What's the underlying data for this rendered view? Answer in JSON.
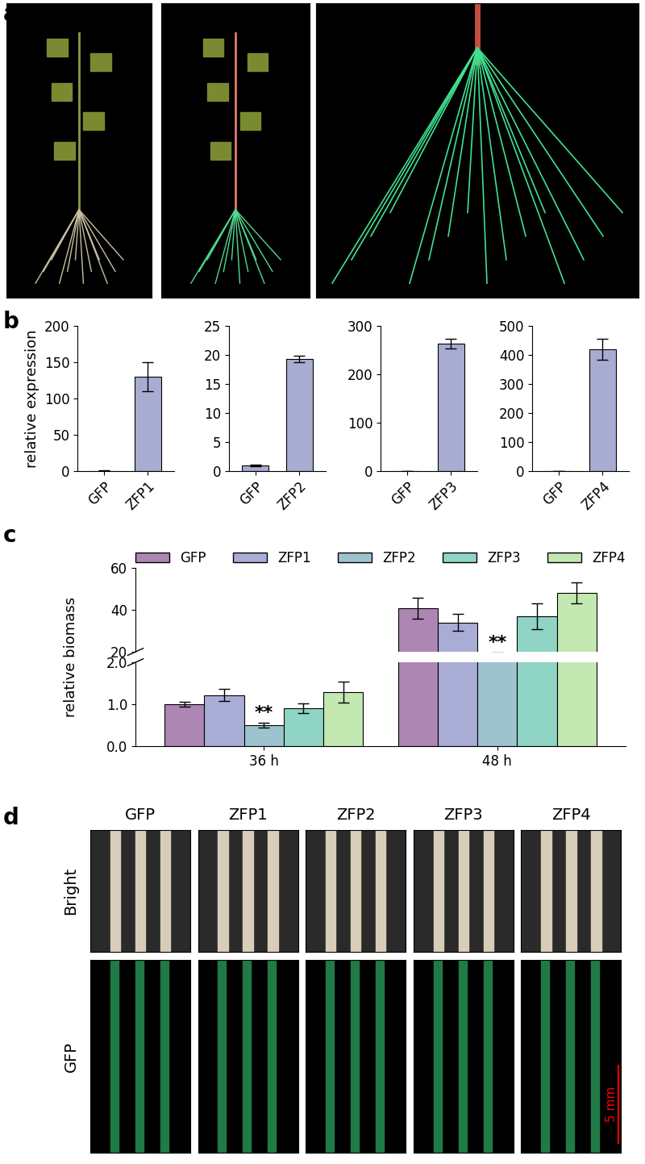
{
  "chart_data": [
    {
      "type": "bar",
      "panel": "b",
      "ylabel": "relative expression",
      "categories": [
        "GFP",
        "ZFP1"
      ],
      "values": [
        1,
        130
      ],
      "errors": [
        0.2,
        20
      ],
      "color": "#a9acd1",
      "ylim": [
        0,
        200
      ],
      "yticks": [
        0,
        50,
        100,
        150,
        200
      ]
    },
    {
      "type": "bar",
      "panel": "b",
      "categories": [
        "GFP",
        "ZFP2"
      ],
      "values": [
        1,
        19.3
      ],
      "errors": [
        0.1,
        0.6
      ],
      "color": "#a9acd1",
      "ylim": [
        0,
        25
      ],
      "yticks": [
        0,
        5,
        10,
        15,
        20,
        25
      ]
    },
    {
      "type": "bar",
      "panel": "b",
      "categories": [
        "GFP",
        "ZFP3"
      ],
      "values": [
        1,
        263
      ],
      "errors": [
        0.2,
        10
      ],
      "color": "#a9acd1",
      "ylim": [
        0,
        300
      ],
      "yticks": [
        0,
        100,
        200,
        300
      ]
    },
    {
      "type": "bar",
      "panel": "b",
      "categories": [
        "GFP",
        "ZFP4"
      ],
      "values": [
        1,
        420
      ],
      "errors": [
        0.2,
        35
      ],
      "color": "#a9acd1",
      "ylim": [
        0,
        500
      ],
      "yticks": [
        0,
        100,
        200,
        300,
        400,
        500
      ]
    },
    {
      "type": "bar",
      "panel": "c",
      "ylabel": "relative biomass",
      "categories": [
        "36 h",
        "48 h"
      ],
      "series": [
        {
          "name": "GFP",
          "color": "#ad86b3",
          "values": [
            1.0,
            41
          ],
          "errors": [
            0.05,
            5
          ]
        },
        {
          "name": "ZFP1",
          "color": "#a9acd4",
          "values": [
            1.22,
            34
          ],
          "errors": [
            0.15,
            4
          ]
        },
        {
          "name": "ZFP2",
          "color": "#9dc3cf",
          "values": [
            0.5,
            18
          ],
          "errors": [
            0.05,
            1.5
          ]
        },
        {
          "name": "ZFP3",
          "color": "#8fd4c4",
          "values": [
            0.9,
            37
          ],
          "errors": [
            0.12,
            6
          ]
        },
        {
          "name": "ZFP4",
          "color": "#c3e8b1",
          "values": [
            1.28,
            48
          ],
          "errors": [
            0.25,
            5
          ]
        }
      ],
      "segments": [
        {
          "ylim": [
            20,
            60
          ],
          "yticks": [
            20,
            40,
            60
          ]
        },
        {
          "ylim": [
            0,
            2
          ],
          "yticks": [
            {
              "value": 0,
              "label": "0.0"
            },
            {
              "value": 1,
              "label": "1.0"
            },
            {
              "value": 2,
              "label": "2.0"
            }
          ]
        }
      ],
      "annotations": [
        {
          "text": "**",
          "category": "36 h",
          "series": "ZFP2"
        },
        {
          "text": "**",
          "category": "48 h",
          "series": "ZFP2"
        }
      ],
      "legend": "upper center"
    }
  ],
  "panels": {
    "labels": [
      "a",
      "b",
      "c",
      "d"
    ],
    "d": {
      "columns": [
        "GFP",
        "ZFP1",
        "ZFP2",
        "ZFP3",
        "ZFP4"
      ],
      "rows": [
        "Bright",
        "GFP"
      ],
      "scale_bar": "5 mm"
    }
  }
}
